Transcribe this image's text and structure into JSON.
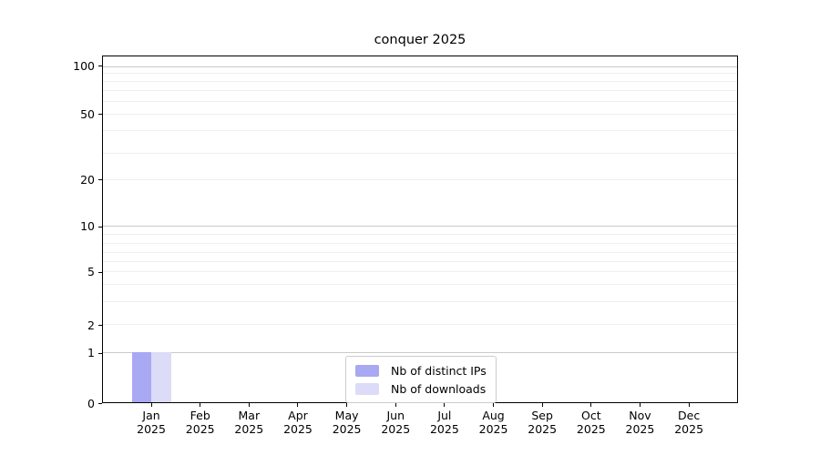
{
  "figure": {
    "title": "conquer 2025"
  },
  "chart_data": {
    "type": "bar",
    "title": "conquer 2025",
    "categories": [
      {
        "month": "Jan",
        "year": "2025"
      },
      {
        "month": "Feb",
        "year": "2025"
      },
      {
        "month": "Mar",
        "year": "2025"
      },
      {
        "month": "Apr",
        "year": "2025"
      },
      {
        "month": "May",
        "year": "2025"
      },
      {
        "month": "Jun",
        "year": "2025"
      },
      {
        "month": "Jul",
        "year": "2025"
      },
      {
        "month": "Aug",
        "year": "2025"
      },
      {
        "month": "Sep",
        "year": "2025"
      },
      {
        "month": "Oct",
        "year": "2025"
      },
      {
        "month": "Nov",
        "year": "2025"
      },
      {
        "month": "Dec",
        "year": "2025"
      }
    ],
    "series": [
      {
        "name": "Nb of distinct IPs",
        "color": "#a8a8f3",
        "values": [
          1,
          0,
          0,
          0,
          0,
          0,
          0,
          0,
          0,
          0,
          0,
          0
        ]
      },
      {
        "name": "Nb of downloads",
        "color": "#dcdcf8",
        "values": [
          1,
          0,
          0,
          0,
          0,
          0,
          0,
          0,
          0,
          0,
          0,
          0
        ]
      }
    ],
    "y_axis": {
      "scale": "symlog",
      "labeled_ticks": [
        100,
        50,
        20,
        10,
        5,
        2,
        1,
        0
      ],
      "ylim": [
        0,
        110
      ],
      "grid": "both"
    },
    "legend": {
      "position": "lower center",
      "items": [
        "Nb of distinct IPs",
        "Nb of downloads"
      ]
    },
    "colors": {
      "grid_major": "#c9c9c9",
      "grid_minor": "#efefef",
      "spine": "#000000",
      "legend_border": "#cccccc",
      "text": "#000000"
    },
    "layout": {
      "y_anchor_pct": {
        "0": 100.0,
        "1": 85.6,
        "2": 77.5,
        "3": 70.9,
        "4": 65.9,
        "5": 62.3,
        "6": 59.4,
        "7": 56.6,
        "8": 54.0,
        "9": 51.5,
        "10": 49.1,
        "20": 35.7,
        "30": 27.9,
        "40": 21.5,
        "50": 16.8,
        "60": 13.0,
        "70": 9.8,
        "80": 7.2,
        "90": 4.8,
        "100": 3.0
      },
      "x_tick_pct": [
        7.67,
        15.36,
        23.04,
        30.73,
        38.41,
        46.1,
        53.78,
        61.47,
        69.15,
        76.84,
        84.52,
        92.21
      ],
      "bar_width_pct": 3.08,
      "grid_major_values": [
        1,
        10,
        100
      ],
      "grid_minor_values": [
        2,
        3,
        4,
        5,
        6,
        7,
        8,
        9,
        20,
        30,
        40,
        50,
        60,
        70,
        80,
        90
      ]
    }
  }
}
